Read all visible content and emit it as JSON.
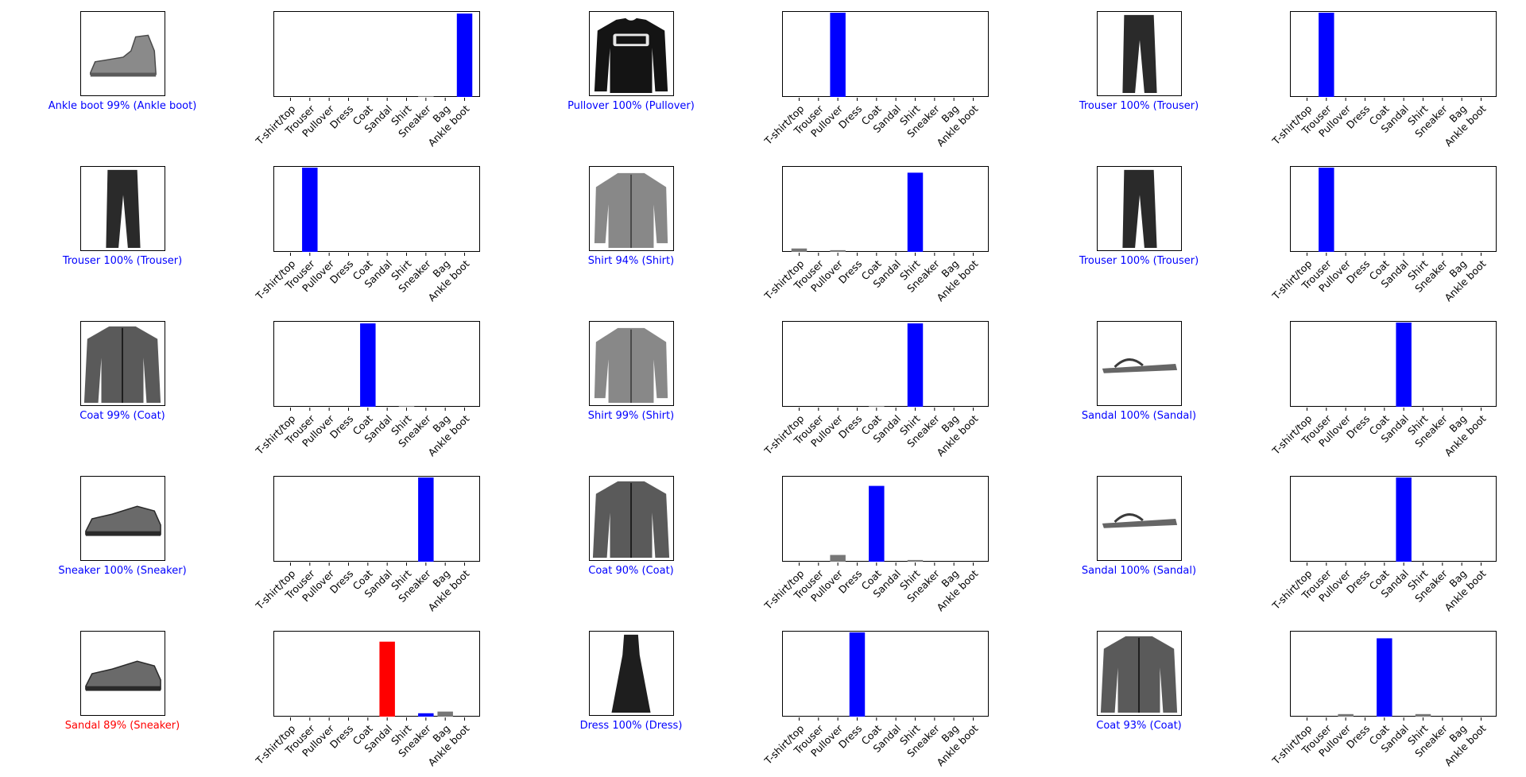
{
  "class_names": [
    "T-shirt/top",
    "Trouser",
    "Pullover",
    "Dress",
    "Coat",
    "Sandal",
    "Shirt",
    "Sneaker",
    "Bag",
    "Ankle boot"
  ],
  "colors": {
    "correct": "#0000ff",
    "wrong": "#ff0000",
    "other_bar": "#777777"
  },
  "samples": [
    {
      "caption": "Ankle boot 99% (Ankle boot)",
      "correct": true,
      "image_icon": "ankle-boot-icon"
    },
    {
      "caption": "Pullover 100% (Pullover)",
      "correct": true,
      "image_icon": "pullover-icon"
    },
    {
      "caption": "Trouser 100% (Trouser)",
      "correct": true,
      "image_icon": "trouser-icon"
    },
    {
      "caption": "Trouser 100% (Trouser)",
      "correct": true,
      "image_icon": "trouser-icon"
    },
    {
      "caption": "Shirt 94% (Shirt)",
      "correct": true,
      "image_icon": "shirt-icon"
    },
    {
      "caption": "Trouser 100% (Trouser)",
      "correct": true,
      "image_icon": "trouser-icon"
    },
    {
      "caption": "Coat 99% (Coat)",
      "correct": true,
      "image_icon": "coat-icon"
    },
    {
      "caption": "Shirt 99% (Shirt)",
      "correct": true,
      "image_icon": "shirt-icon"
    },
    {
      "caption": "Sandal 100% (Sandal)",
      "correct": true,
      "image_icon": "sandal-icon"
    },
    {
      "caption": "Sneaker 100% (Sneaker)",
      "correct": true,
      "image_icon": "sneaker-icon"
    },
    {
      "caption": "Coat 90% (Coat)",
      "correct": true,
      "image_icon": "coat-icon"
    },
    {
      "caption": "Sandal 100% (Sandal)",
      "correct": true,
      "image_icon": "sandal-icon"
    },
    {
      "caption": "Sandal 89% (Sneaker)",
      "correct": false,
      "image_icon": "sneaker-icon"
    },
    {
      "caption": "Dress 100% (Dress)",
      "correct": true,
      "image_icon": "dress-icon"
    },
    {
      "caption": "Coat 93% (Coat)",
      "correct": true,
      "image_icon": "coat-icon"
    }
  ],
  "chart_data": [
    {
      "type": "bar",
      "categories": [
        "T-shirt/top",
        "Trouser",
        "Pullover",
        "Dress",
        "Coat",
        "Sandal",
        "Shirt",
        "Sneaker",
        "Bag",
        "Ankle boot"
      ],
      "values": [
        0,
        0,
        0,
        0,
        0,
        0,
        0,
        0.01,
        0,
        0.99
      ],
      "predicted": 9,
      "true_label": 9,
      "ylim": [
        0,
        1
      ]
    },
    {
      "type": "bar",
      "categories": [
        "T-shirt/top",
        "Trouser",
        "Pullover",
        "Dress",
        "Coat",
        "Sandal",
        "Shirt",
        "Sneaker",
        "Bag",
        "Ankle boot"
      ],
      "values": [
        0,
        0,
        1.0,
        0,
        0,
        0,
        0,
        0,
        0,
        0
      ],
      "predicted": 2,
      "true_label": 2,
      "ylim": [
        0,
        1
      ]
    },
    {
      "type": "bar",
      "categories": [
        "T-shirt/top",
        "Trouser",
        "Pullover",
        "Dress",
        "Coat",
        "Sandal",
        "Shirt",
        "Sneaker",
        "Bag",
        "Ankle boot"
      ],
      "values": [
        0,
        1.0,
        0,
        0,
        0,
        0,
        0,
        0,
        0,
        0
      ],
      "predicted": 1,
      "true_label": 1,
      "ylim": [
        0,
        1
      ]
    },
    {
      "type": "bar",
      "categories": [
        "T-shirt/top",
        "Trouser",
        "Pullover",
        "Dress",
        "Coat",
        "Sandal",
        "Shirt",
        "Sneaker",
        "Bag",
        "Ankle boot"
      ],
      "values": [
        0,
        1.0,
        0,
        0,
        0,
        0,
        0,
        0,
        0,
        0
      ],
      "predicted": 1,
      "true_label": 1,
      "ylim": [
        0,
        1
      ]
    },
    {
      "type": "bar",
      "categories": [
        "T-shirt/top",
        "Trouser",
        "Pullover",
        "Dress",
        "Coat",
        "Sandal",
        "Shirt",
        "Sneaker",
        "Bag",
        "Ankle boot"
      ],
      "values": [
        0.04,
        0,
        0.02,
        0,
        0,
        0,
        0.94,
        0,
        0,
        0
      ],
      "predicted": 6,
      "true_label": 6,
      "ylim": [
        0,
        1
      ]
    },
    {
      "type": "bar",
      "categories": [
        "T-shirt/top",
        "Trouser",
        "Pullover",
        "Dress",
        "Coat",
        "Sandal",
        "Shirt",
        "Sneaker",
        "Bag",
        "Ankle boot"
      ],
      "values": [
        0,
        1.0,
        0,
        0,
        0,
        0,
        0,
        0,
        0,
        0
      ],
      "predicted": 1,
      "true_label": 1,
      "ylim": [
        0,
        1
      ]
    },
    {
      "type": "bar",
      "categories": [
        "T-shirt/top",
        "Trouser",
        "Pullover",
        "Dress",
        "Coat",
        "Sandal",
        "Shirt",
        "Sneaker",
        "Bag",
        "Ankle boot"
      ],
      "values": [
        0,
        0,
        0,
        0,
        0.99,
        0,
        0.01,
        0,
        0,
        0
      ],
      "predicted": 4,
      "true_label": 4,
      "ylim": [
        0,
        1
      ]
    },
    {
      "type": "bar",
      "categories": [
        "T-shirt/top",
        "Trouser",
        "Pullover",
        "Dress",
        "Coat",
        "Sandal",
        "Shirt",
        "Sneaker",
        "Bag",
        "Ankle boot"
      ],
      "values": [
        0,
        0,
        0,
        0,
        0.01,
        0,
        0.99,
        0,
        0,
        0
      ],
      "predicted": 6,
      "true_label": 6,
      "ylim": [
        0,
        1
      ]
    },
    {
      "type": "bar",
      "categories": [
        "T-shirt/top",
        "Trouser",
        "Pullover",
        "Dress",
        "Coat",
        "Sandal",
        "Shirt",
        "Sneaker",
        "Bag",
        "Ankle boot"
      ],
      "values": [
        0,
        0,
        0,
        0,
        0,
        1.0,
        0,
        0,
        0,
        0
      ],
      "predicted": 5,
      "true_label": 5,
      "ylim": [
        0,
        1
      ]
    },
    {
      "type": "bar",
      "categories": [
        "T-shirt/top",
        "Trouser",
        "Pullover",
        "Dress",
        "Coat",
        "Sandal",
        "Shirt",
        "Sneaker",
        "Bag",
        "Ankle boot"
      ],
      "values": [
        0,
        0,
        0,
        0,
        0,
        0,
        0,
        1.0,
        0,
        0
      ],
      "predicted": 7,
      "true_label": 7,
      "ylim": [
        0,
        1
      ]
    },
    {
      "type": "bar",
      "categories": [
        "T-shirt/top",
        "Trouser",
        "Pullover",
        "Dress",
        "Coat",
        "Sandal",
        "Shirt",
        "Sneaker",
        "Bag",
        "Ankle boot"
      ],
      "values": [
        0,
        0,
        0.08,
        0,
        0.9,
        0,
        0.02,
        0,
        0,
        0
      ],
      "predicted": 4,
      "true_label": 4,
      "ylim": [
        0,
        1
      ]
    },
    {
      "type": "bar",
      "categories": [
        "T-shirt/top",
        "Trouser",
        "Pullover",
        "Dress",
        "Coat",
        "Sandal",
        "Shirt",
        "Sneaker",
        "Bag",
        "Ankle boot"
      ],
      "values": [
        0,
        0,
        0,
        0,
        0,
        1.0,
        0,
        0,
        0,
        0
      ],
      "predicted": 5,
      "true_label": 5,
      "ylim": [
        0,
        1
      ]
    },
    {
      "type": "bar",
      "categories": [
        "T-shirt/top",
        "Trouser",
        "Pullover",
        "Dress",
        "Coat",
        "Sandal",
        "Shirt",
        "Sneaker",
        "Bag",
        "Ankle boot"
      ],
      "values": [
        0,
        0,
        0,
        0,
        0,
        0.89,
        0,
        0.04,
        0.06,
        0
      ],
      "predicted": 5,
      "true_label": 7,
      "ylim": [
        0,
        1
      ]
    },
    {
      "type": "bar",
      "categories": [
        "T-shirt/top",
        "Trouser",
        "Pullover",
        "Dress",
        "Coat",
        "Sandal",
        "Shirt",
        "Sneaker",
        "Bag",
        "Ankle boot"
      ],
      "values": [
        0,
        0,
        0,
        1.0,
        0,
        0,
        0,
        0,
        0,
        0
      ],
      "predicted": 3,
      "true_label": 3,
      "ylim": [
        0,
        1
      ]
    },
    {
      "type": "bar",
      "categories": [
        "T-shirt/top",
        "Trouser",
        "Pullover",
        "Dress",
        "Coat",
        "Sandal",
        "Shirt",
        "Sneaker",
        "Bag",
        "Ankle boot"
      ],
      "values": [
        0,
        0,
        0.03,
        0,
        0.93,
        0,
        0.03,
        0,
        0,
        0
      ],
      "predicted": 4,
      "true_label": 4,
      "ylim": [
        0,
        1
      ]
    }
  ]
}
